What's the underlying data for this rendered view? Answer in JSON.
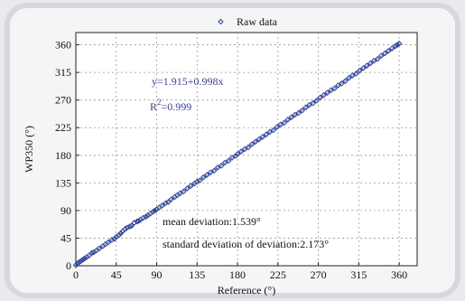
{
  "chart_data": {
    "type": "scatter",
    "title": "",
    "xlabel": "Reference (°)",
    "ylabel": "WP350 (°)",
    "xlim": [
      0,
      380
    ],
    "ylim": [
      0,
      380
    ],
    "xticks": [
      0,
      45,
      90,
      135,
      180,
      225,
      270,
      315,
      360
    ],
    "yticks": [
      0,
      45,
      90,
      135,
      180,
      225,
      270,
      315,
      360
    ],
    "grid": true,
    "legend": {
      "position": "top",
      "entries": [
        "Raw data"
      ]
    },
    "series": [
      {
        "name": "Raw data",
        "marker": "diamond",
        "color": "#2b3f96",
        "fit": {
          "intercept": 1.915,
          "slope": 0.998
        },
        "x": [
          0,
          2,
          4,
          6,
          8,
          10,
          12,
          15,
          18,
          20,
          23,
          26,
          30,
          33,
          36,
          40,
          43,
          45,
          48,
          50,
          52,
          55,
          57,
          60,
          62,
          65,
          68,
          70,
          72,
          75,
          78,
          80,
          83,
          86,
          88,
          90,
          93,
          96,
          100,
          103,
          106,
          110,
          113,
          116,
          120,
          124,
          128,
          132,
          135,
          138,
          142,
          146,
          150,
          154,
          158,
          162,
          166,
          170,
          174,
          178,
          180,
          184,
          188,
          192,
          196,
          200,
          204,
          208,
          212,
          216,
          220,
          224,
          228,
          232,
          236,
          240,
          244,
          248,
          252,
          256,
          260,
          264,
          268,
          272,
          276,
          280,
          284,
          288,
          292,
          296,
          300,
          304,
          308,
          312,
          316,
          320,
          324,
          328,
          332,
          336,
          340,
          344,
          348,
          352,
          356,
          358,
          360
        ],
        "y": [
          1,
          4,
          6,
          8,
          10,
          12,
          14,
          17,
          21,
          22,
          25,
          28,
          32,
          35,
          38,
          42,
          44,
          47,
          50,
          53,
          56,
          60,
          62,
          64,
          65,
          70,
          72,
          73,
          75,
          78,
          80,
          82,
          85,
          88,
          90,
          92,
          95,
          98,
          102,
          104,
          108,
          112,
          115,
          118,
          121,
          126,
          130,
          134,
          137,
          139,
          144,
          148,
          152,
          155,
          160,
          163,
          168,
          171,
          176,
          179,
          182,
          186,
          190,
          193,
          198,
          202,
          206,
          210,
          214,
          218,
          221,
          226,
          230,
          233,
          238,
          242,
          246,
          249,
          253,
          258,
          262,
          265,
          269,
          274,
          278,
          282,
          286,
          289,
          294,
          297,
          301,
          306,
          310,
          313,
          318,
          322,
          326,
          330,
          334,
          337,
          342,
          346,
          350,
          354,
          358,
          360,
          362
        ]
      }
    ],
    "annotations": {
      "equation": "y=1.915+0.998x",
      "r2_prefix": "R",
      "r2_sup": "2",
      "r2_value": "=0.999",
      "mean_deviation": "mean deviation:1.539°",
      "std_deviation": "standard deviation of deviation:2.173°"
    }
  }
}
